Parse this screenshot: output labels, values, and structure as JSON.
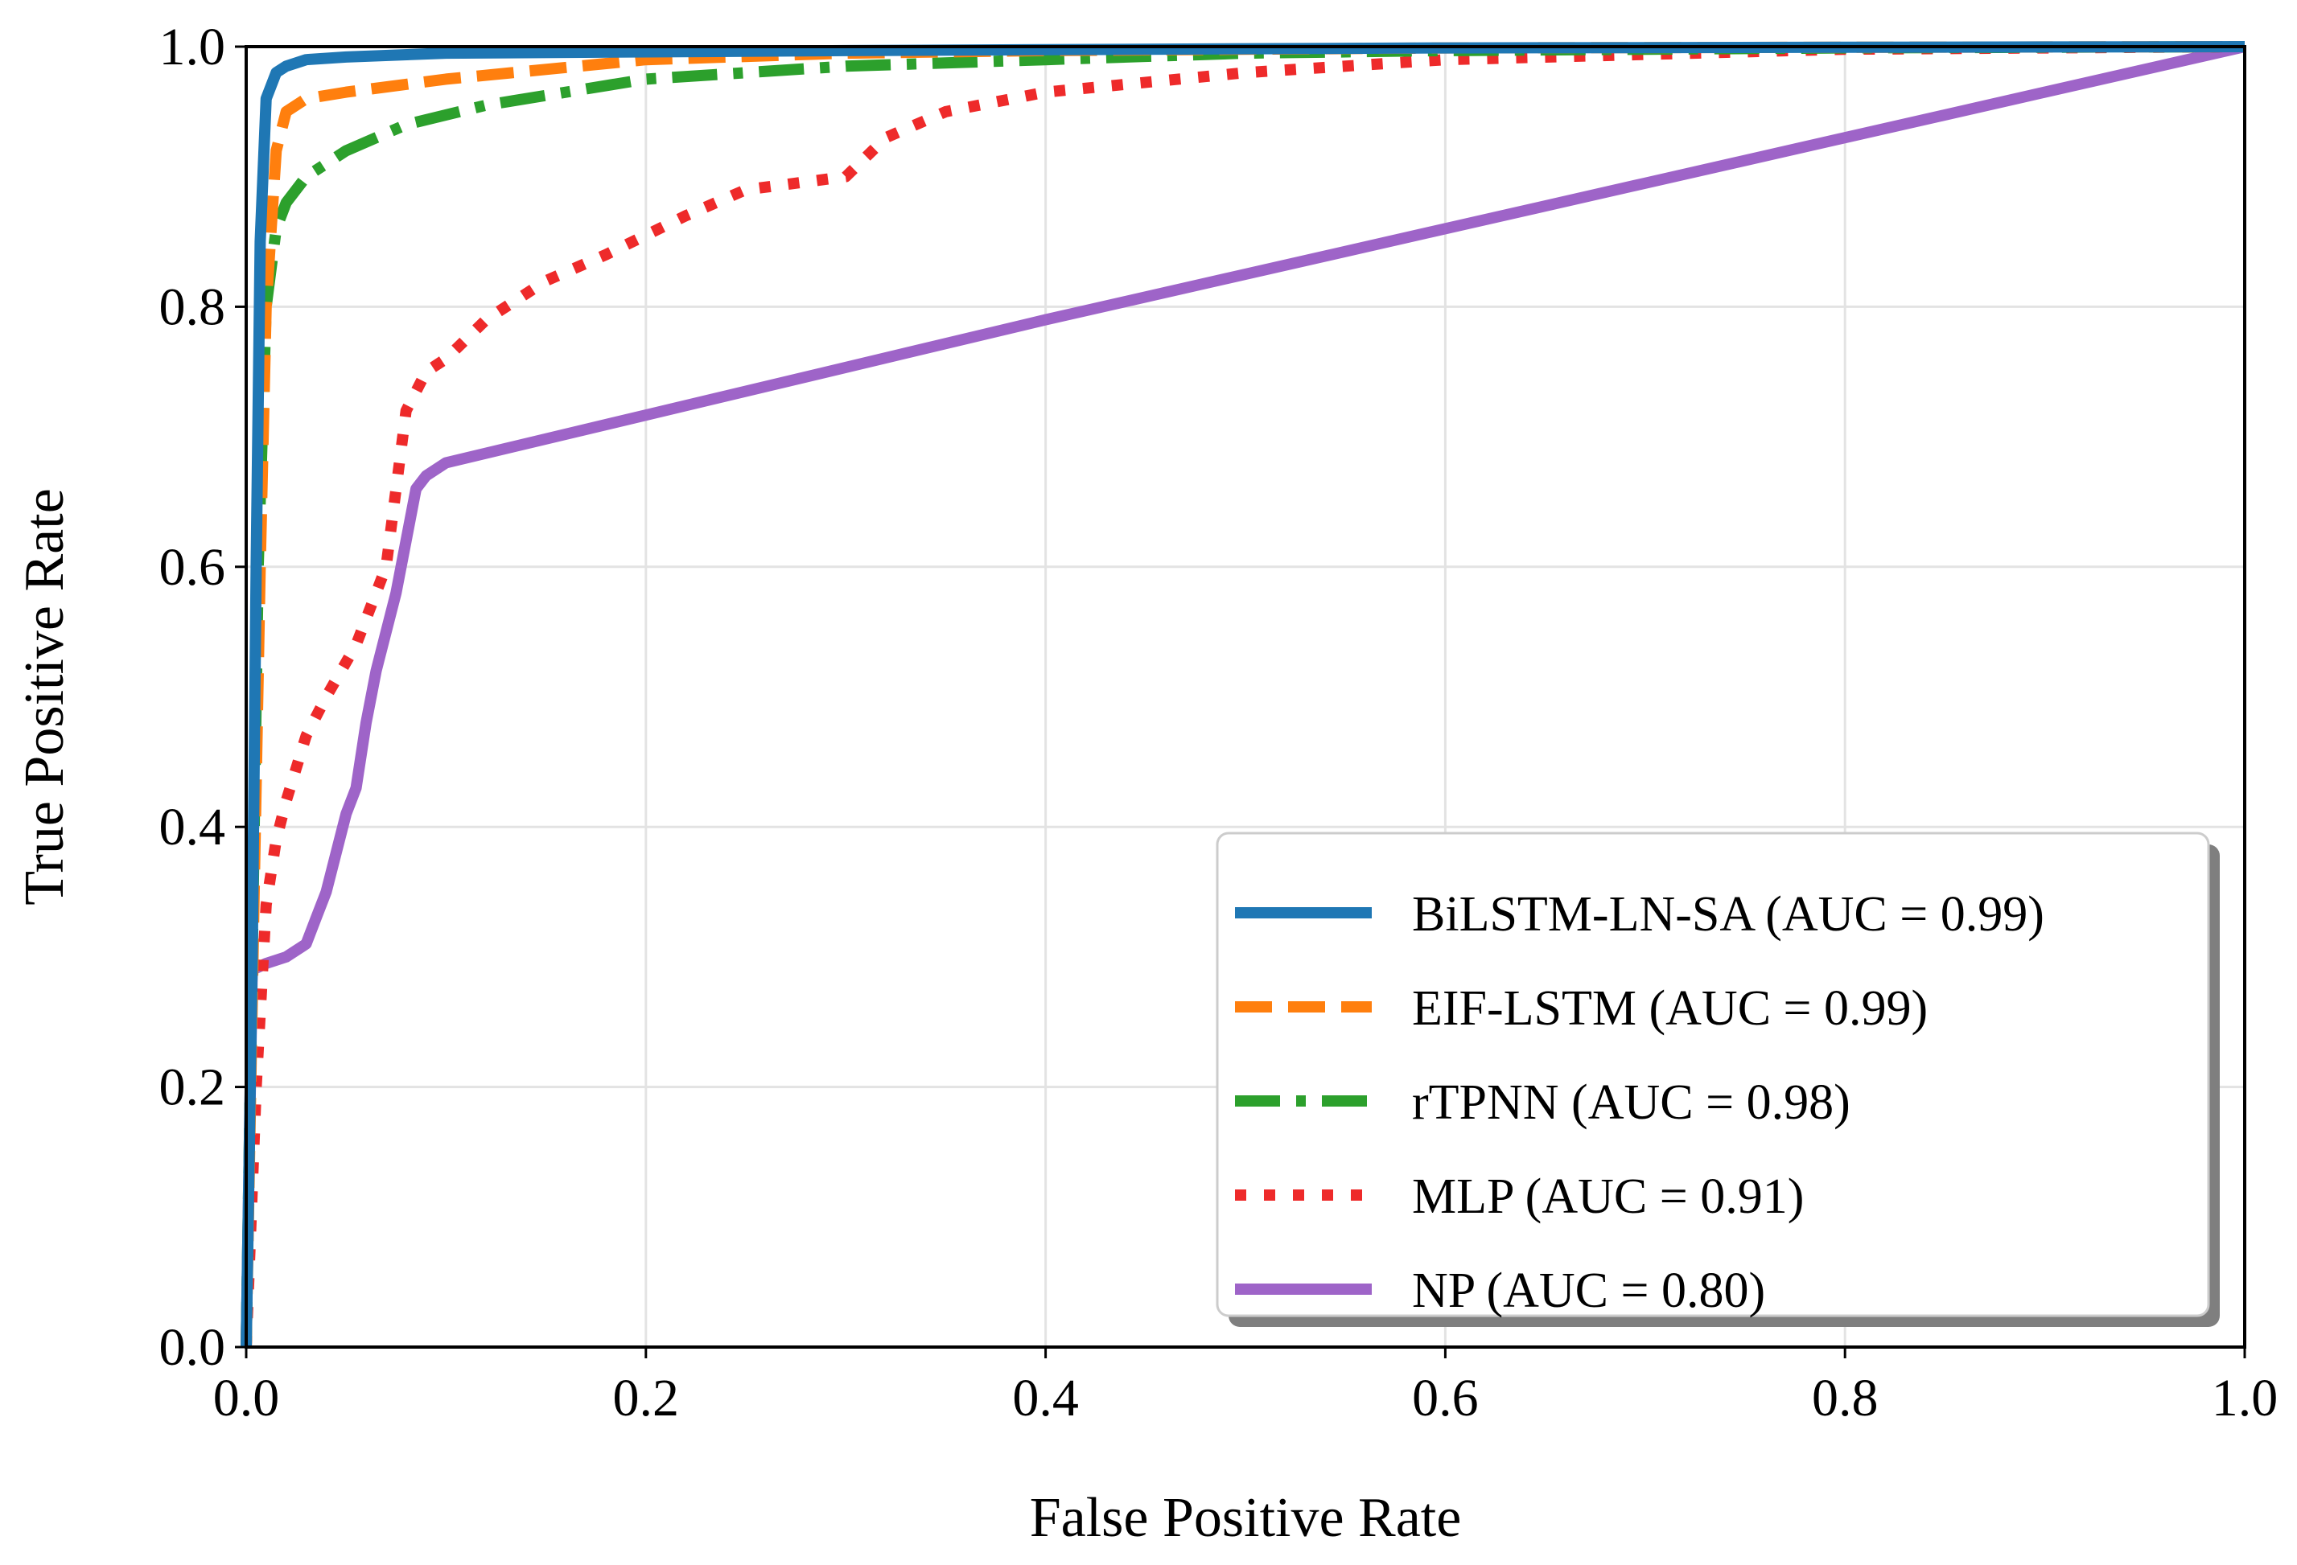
{
  "chart_data": {
    "type": "line",
    "title": "",
    "xlabel": "False Positive Rate",
    "ylabel": "True Positive Rate",
    "xlim": [
      0.0,
      1.0
    ],
    "ylim": [
      0.0,
      1.0
    ],
    "xticks": [
      "0.0",
      "0.2",
      "0.4",
      "0.6",
      "0.8",
      "1.0"
    ],
    "yticks": [
      "0.0",
      "0.2",
      "0.4",
      "0.6",
      "0.8",
      "1.0"
    ],
    "grid": true,
    "legend_position": "lower-right",
    "series": [
      {
        "name": "BiLSTM-LN-SA (AUC = 0.99)",
        "color": "#1f77b4",
        "style": "solid",
        "x": [
          0.0,
          0.003,
          0.005,
          0.007,
          0.01,
          0.015,
          0.02,
          0.03,
          0.05,
          0.1,
          0.3,
          0.6,
          1.0
        ],
        "y": [
          0.0,
          0.3,
          0.6,
          0.85,
          0.96,
          0.98,
          0.985,
          0.99,
          0.992,
          0.995,
          0.997,
          0.999,
          1.0
        ]
      },
      {
        "name": "EIF-LSTM (AUC = 0.99)",
        "color": "#ff7f0e",
        "style": "dashed",
        "x": [
          0.0,
          0.004,
          0.007,
          0.01,
          0.015,
          0.02,
          0.03,
          0.05,
          0.1,
          0.2,
          0.3,
          0.4,
          0.6,
          1.0
        ],
        "y": [
          0.0,
          0.35,
          0.6,
          0.8,
          0.92,
          0.95,
          0.96,
          0.965,
          0.975,
          0.99,
          0.995,
          0.997,
          0.999,
          1.0
        ]
      },
      {
        "name": "rTPNN (AUC = 0.98)",
        "color": "#2ca02c",
        "style": "dashdot",
        "x": [
          0.0,
          0.003,
          0.006,
          0.01,
          0.015,
          0.02,
          0.03,
          0.05,
          0.08,
          0.12,
          0.2,
          0.3,
          0.4,
          0.5,
          0.6,
          0.8,
          1.0
        ],
        "y": [
          0.0,
          0.3,
          0.6,
          0.8,
          0.86,
          0.88,
          0.9,
          0.92,
          0.94,
          0.955,
          0.975,
          0.985,
          0.99,
          0.995,
          0.997,
          0.999,
          1.0
        ]
      },
      {
        "name": "MLP (AUC = 0.91)",
        "color": "#ee2a2a",
        "style": "dotted",
        "x": [
          0.0,
          0.005,
          0.01,
          0.015,
          0.02,
          0.03,
          0.04,
          0.055,
          0.07,
          0.08,
          0.09,
          0.1,
          0.12,
          0.15,
          0.18,
          0.22,
          0.25,
          0.3,
          0.32,
          0.35,
          0.4,
          0.5,
          0.6,
          0.8,
          1.0
        ],
        "y": [
          0.0,
          0.2,
          0.34,
          0.39,
          0.42,
          0.47,
          0.5,
          0.54,
          0.6,
          0.72,
          0.75,
          0.76,
          0.79,
          0.82,
          0.84,
          0.87,
          0.89,
          0.9,
          0.93,
          0.95,
          0.965,
          0.98,
          0.99,
          0.998,
          1.0
        ]
      },
      {
        "name": "NP (AUC = 0.80)",
        "color": "#9e64c8",
        "style": "solid",
        "x": [
          0.0,
          0.003,
          0.01,
          0.02,
          0.03,
          0.035,
          0.04,
          0.045,
          0.05,
          0.055,
          0.06,
          0.065,
          0.07,
          0.075,
          0.08,
          0.085,
          0.09,
          0.1,
          0.4,
          0.7,
          1.0
        ],
        "y": [
          0.0,
          0.29,
          0.295,
          0.3,
          0.31,
          0.33,
          0.35,
          0.38,
          0.41,
          0.43,
          0.48,
          0.52,
          0.55,
          0.58,
          0.62,
          0.66,
          0.67,
          0.68,
          0.79,
          0.895,
          1.0
        ]
      }
    ]
  }
}
